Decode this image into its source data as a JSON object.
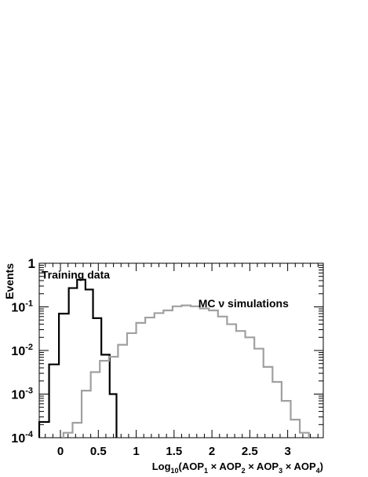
{
  "chart_data": {
    "type": "histogram",
    "scale_y": "log",
    "xlim": [
      -0.28,
      3.47
    ],
    "ylim": [
      0.0001,
      1
    ],
    "ylabel": "Events",
    "xlabel_parts": [
      {
        "t": "Log"
      },
      {
        "t": "10",
        "sub": true
      },
      {
        "t": "(AOP"
      },
      {
        "t": "1",
        "sub": true
      },
      {
        "t": " × AOP"
      },
      {
        "t": "2",
        "sub": true
      },
      {
        "t": " × AOP"
      },
      {
        "t": "3",
        "sub": true
      },
      {
        "t": " × AOP"
      },
      {
        "t": "4",
        "sub": true
      },
      {
        "t": ")"
      }
    ],
    "x_ticks": [
      {
        "value": 0,
        "label": "0"
      },
      {
        "value": 0.5,
        "label": "0.5"
      },
      {
        "value": 1,
        "label": "1"
      },
      {
        "value": 1.5,
        "label": "1.5"
      },
      {
        "value": 2,
        "label": "2"
      },
      {
        "value": 2.5,
        "label": "2.5"
      },
      {
        "value": 3,
        "label": "3"
      }
    ],
    "y_ticks": [
      {
        "value": 1,
        "label": "1"
      },
      {
        "value": 0.1,
        "base": "10",
        "exp": "-1"
      },
      {
        "value": 0.01,
        "base": "10",
        "exp": "-2"
      },
      {
        "value": 0.001,
        "base": "10",
        "exp": "-3"
      },
      {
        "value": 0.0001,
        "base": "10",
        "exp": "-4"
      }
    ],
    "series": [
      {
        "name": "Training data",
        "color": "#000000",
        "bins": [
          [
            -0.28,
            -0.15,
            0.00023
          ],
          [
            -0.15,
            -0.02,
            0.0048
          ],
          [
            -0.02,
            0.11,
            0.07
          ],
          [
            0.11,
            0.22,
            0.27
          ],
          [
            0.22,
            0.33,
            0.42
          ],
          [
            0.33,
            0.43,
            0.25
          ],
          [
            0.43,
            0.54,
            0.055
          ],
          [
            0.54,
            0.65,
            0.008
          ],
          [
            0.65,
            0.74,
            0.001
          ]
        ]
      },
      {
        "name": "MC ν simulations",
        "color": "#a0a0a0",
        "bins": [
          [
            0.04,
            0.16,
            0.00013
          ],
          [
            0.16,
            0.28,
            0.00022
          ],
          [
            0.28,
            0.4,
            0.0012
          ],
          [
            0.4,
            0.52,
            0.0032
          ],
          [
            0.52,
            0.64,
            0.0058
          ],
          [
            0.64,
            0.76,
            0.0072
          ],
          [
            0.76,
            0.88,
            0.0135
          ],
          [
            0.88,
            1.0,
            0.025
          ],
          [
            1.0,
            1.12,
            0.043
          ],
          [
            1.12,
            1.24,
            0.057
          ],
          [
            1.24,
            1.36,
            0.072
          ],
          [
            1.36,
            1.48,
            0.083
          ],
          [
            1.48,
            1.6,
            0.103
          ],
          [
            1.6,
            1.72,
            0.108
          ],
          [
            1.72,
            1.84,
            0.103
          ],
          [
            1.84,
            1.96,
            0.092
          ],
          [
            1.96,
            2.08,
            0.083
          ],
          [
            2.08,
            2.2,
            0.06
          ],
          [
            2.2,
            2.32,
            0.04
          ],
          [
            2.32,
            2.44,
            0.028
          ],
          [
            2.44,
            2.56,
            0.02
          ],
          [
            2.56,
            2.68,
            0.011
          ],
          [
            2.68,
            2.8,
            0.0042
          ],
          [
            2.8,
            2.92,
            0.0019
          ],
          [
            2.92,
            3.04,
            0.0007
          ],
          [
            3.04,
            3.16,
            0.00026
          ],
          [
            3.16,
            3.28,
            0.00013
          ]
        ]
      }
    ],
    "annotations": [
      {
        "text": "Training data",
        "x": -0.25,
        "y": 0.55
      },
      {
        "text": "MC ν simulations",
        "x": 1.82,
        "y": 0.12
      }
    ]
  }
}
